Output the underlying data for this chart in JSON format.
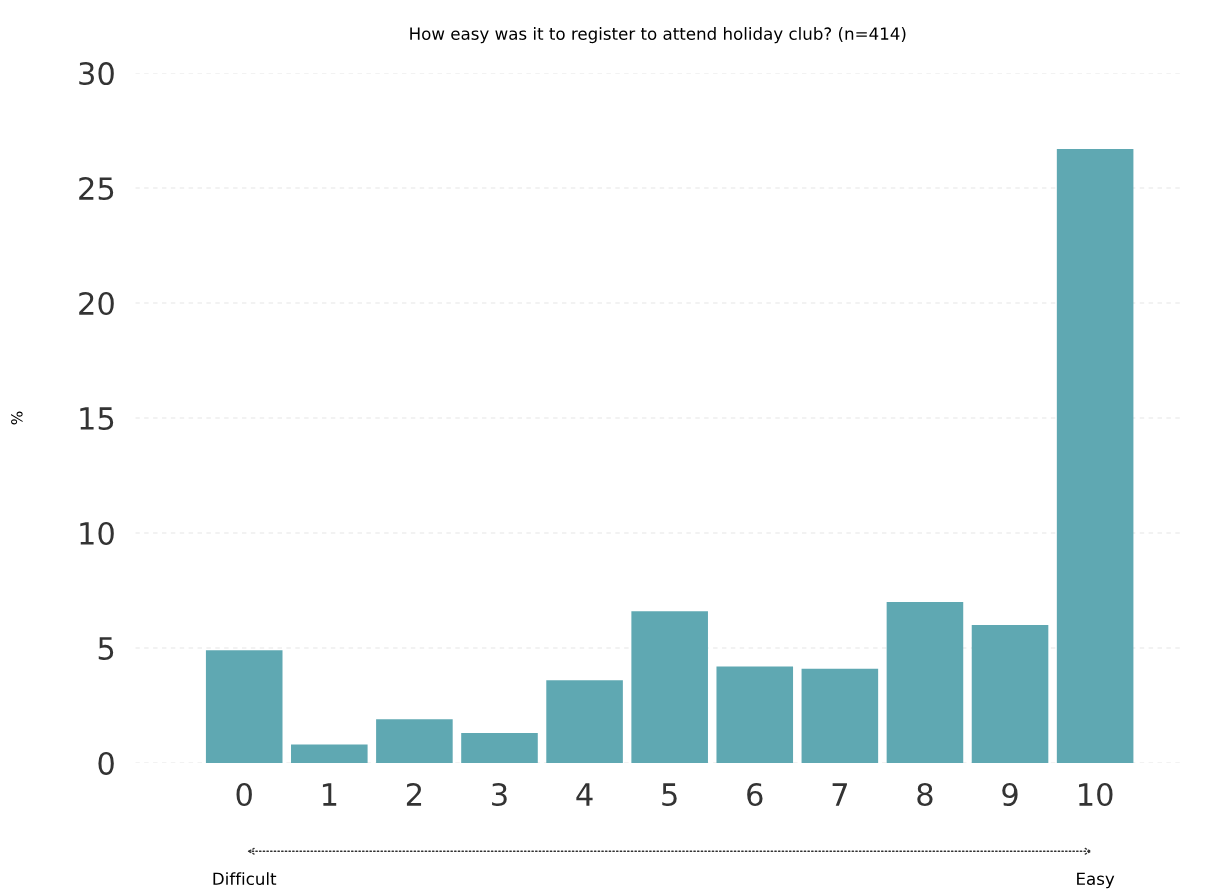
{
  "chart_data": {
    "type": "bar",
    "title": "How easy was it to register to attend holiday club? (n=414)",
    "ylabel": "%",
    "categories": [
      "0",
      "1",
      "2",
      "3",
      "4",
      "5",
      "6",
      "7",
      "8",
      "9",
      "10"
    ],
    "values": [
      4.9,
      0.8,
      1.9,
      1.3,
      3.6,
      6.6,
      4.2,
      4.1,
      7.0,
      6.0,
      26.7
    ],
    "color": "#5fa8b2",
    "ylim": [
      0,
      30
    ],
    "yticks": [
      0,
      5,
      10,
      15,
      20,
      25,
      30
    ],
    "grid": "y",
    "annotations": [
      "Difficult",
      "Easy"
    ]
  }
}
